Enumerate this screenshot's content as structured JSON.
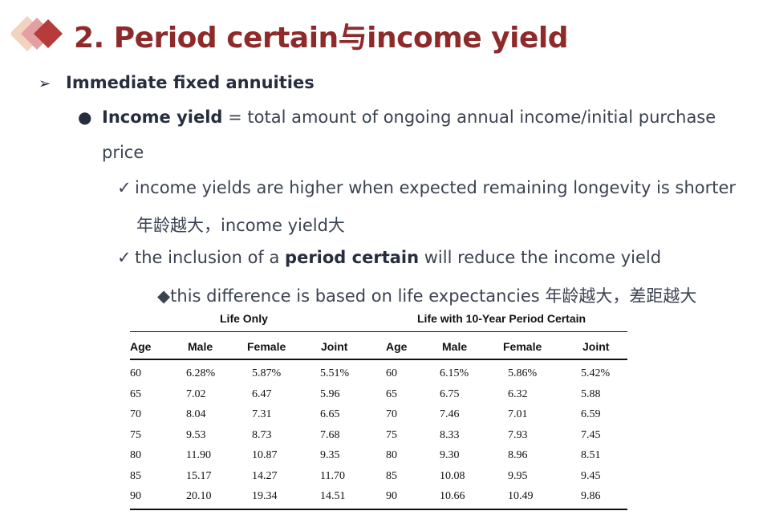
{
  "title": "2. Period certain与income yield",
  "icons": {
    "title_logo": "layered-diamonds-icon",
    "bullet1": "arrow-bullet-icon",
    "bullet2": "round-bullet-icon",
    "check": "check-icon",
    "diamond": "diamond-bullet-icon"
  },
  "colors": {
    "title": "#8f2a2a",
    "diamond_dark": "#b83b3b",
    "diamond_mid": "#e3a0a0",
    "diamond_light": "#f3d2c0"
  },
  "bullets": {
    "marker_arrow": "➢",
    "marker_dot": "●",
    "marker_check": "✓",
    "marker_diamond": "◆",
    "l1": "Immediate fixed annuities",
    "l2_bold": "Income yield",
    "l2_rest": " = total amount of ongoing annual income/initial purchase",
    "l3": "price",
    "l4": "income yields are higher when expected remaining longevity is shorter",
    "l5": "年龄越大，income yield大",
    "l6_pre": "the inclusion of a ",
    "l6_bold": "period certain",
    "l6_post": " will reduce the income yield",
    "l7": "this difference is based on life expectancies 年龄越大，差距越大"
  },
  "table": {
    "group_left": "Life Only",
    "group_right": "Life with 10-Year Period Certain",
    "headers": [
      "Age",
      "Male",
      "Female",
      "Joint",
      "Age",
      "Male",
      "Female",
      "Joint"
    ],
    "rows": [
      [
        "60",
        "6.28%",
        "5.87%",
        "5.51%",
        "60",
        "6.15%",
        "5.86%",
        "5.42%"
      ],
      [
        "65",
        "7.02",
        "6.47",
        "5.96",
        "65",
        "6.75",
        "6.32",
        "5.88"
      ],
      [
        "70",
        "8.04",
        "7.31",
        "6.65",
        "70",
        "7.46",
        "7.01",
        "6.59"
      ],
      [
        "75",
        "9.53",
        "8.73",
        "7.68",
        "75",
        "8.33",
        "7.93",
        "7.45"
      ],
      [
        "80",
        "11.90",
        "10.87",
        "9.35",
        "80",
        "9.30",
        "8.96",
        "8.51"
      ],
      [
        "85",
        "15.17",
        "14.27",
        "11.70",
        "85",
        "10.08",
        "9.95",
        "9.45"
      ],
      [
        "90",
        "20.10",
        "19.34",
        "14.51",
        "90",
        "10.66",
        "10.49",
        "9.86"
      ]
    ]
  }
}
